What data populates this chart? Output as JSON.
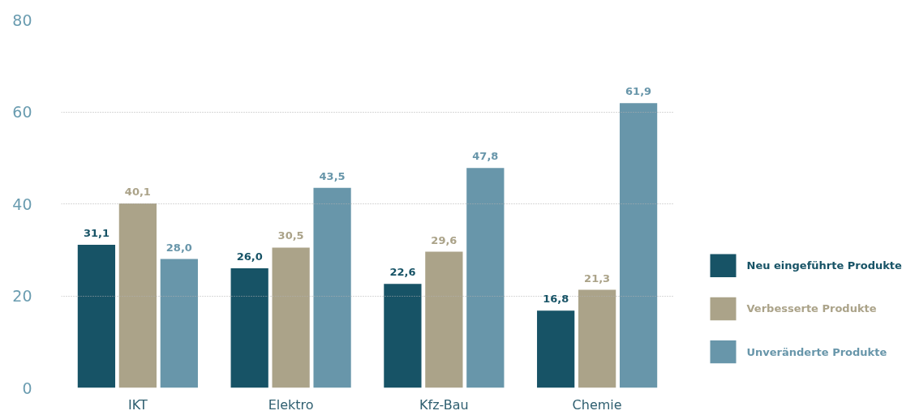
{
  "chart_data": {
    "type": "bar",
    "categories": [
      "IKT",
      "Elektro",
      "Kfz-Bau",
      "Chemie"
    ],
    "series": [
      {
        "name": "Neu eingeführte Produkte",
        "color": "#175366",
        "values": [
          31.1,
          26.0,
          22.6,
          16.8
        ],
        "value_labels": [
          "31,1",
          "26,0",
          "22,6",
          "16,8"
        ]
      },
      {
        "name": "Verbesserte Produkte",
        "color": "#aba389",
        "values": [
          40.1,
          30.5,
          29.6,
          21.3
        ],
        "value_labels": [
          "40,1",
          "30,5",
          "29,6",
          "21,3"
        ]
      },
      {
        "name": "Unveränderte Produkte",
        "color": "#6896aa",
        "values": [
          28.0,
          43.5,
          47.8,
          61.9
        ],
        "value_labels": [
          "28,0",
          "43,5",
          "47,8",
          "61,9"
        ]
      }
    ],
    "ylim": [
      0,
      80
    ],
    "yticks": [
      0,
      20,
      40,
      60,
      80
    ],
    "grid": "y",
    "legend": "right"
  }
}
